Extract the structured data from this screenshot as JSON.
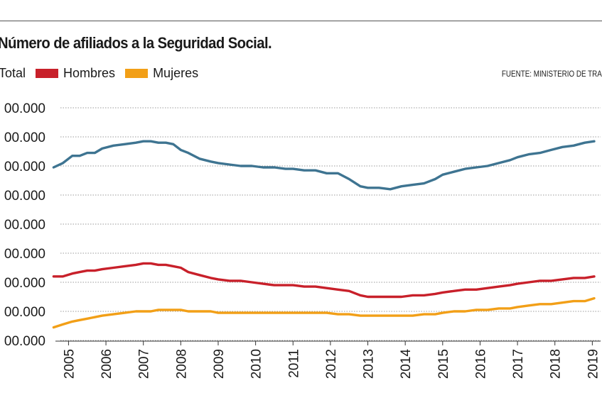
{
  "title": "Número de afiliados a la Seguridad Social.",
  "source": "FUENTE: MINISTERIO DE TRA",
  "chart_data": {
    "type": "line",
    "title": "Número de afiliados a la Seguridad Social.",
    "xlabel": "",
    "ylabel": "",
    "x_ticks": [
      "2005",
      "2006",
      "2007",
      "2008",
      "2009",
      "2010",
      "2011",
      "2012",
      "2013",
      "2014",
      "2015",
      "2016",
      "2017",
      "2018",
      "2019"
    ],
    "y_ticks": [
      "00.000",
      "00.000",
      "00.000",
      "00.000",
      "00.000",
      "00.000",
      "00.000",
      "00.000",
      "00.000"
    ],
    "xlim": [
      2005,
      2019
    ],
    "ylim": [
      0,
      8
    ],
    "grid": true,
    "legend_position": "top-left",
    "series": [
      {
        "name": "Total",
        "color": "#3e7491",
        "x": [
          2004.6,
          2004.85,
          2005.1,
          2005.3,
          2005.5,
          2005.7,
          2005.9,
          2006.2,
          2006.5,
          2006.8,
          2007.0,
          2007.2,
          2007.4,
          2007.6,
          2007.8,
          2008.0,
          2008.2,
          2008.5,
          2008.8,
          2009.0,
          2009.3,
          2009.6,
          2009.9,
          2010.2,
          2010.5,
          2010.8,
          2011.0,
          2011.3,
          2011.6,
          2011.9,
          2012.2,
          2012.5,
          2012.8,
          2013.0,
          2013.3,
          2013.6,
          2013.9,
          2014.2,
          2014.5,
          2014.8,
          2015.0,
          2015.3,
          2015.6,
          2015.9,
          2016.2,
          2016.5,
          2016.8,
          2017.0,
          2017.3,
          2017.6,
          2017.9,
          2018.2,
          2018.5,
          2018.8,
          2019.05
        ],
        "values": [
          5.95,
          6.1,
          6.35,
          6.35,
          6.45,
          6.45,
          6.6,
          6.7,
          6.75,
          6.8,
          6.85,
          6.85,
          6.8,
          6.8,
          6.75,
          6.55,
          6.45,
          6.25,
          6.15,
          6.1,
          6.05,
          6.0,
          6.0,
          5.95,
          5.95,
          5.9,
          5.9,
          5.85,
          5.85,
          5.75,
          5.75,
          5.55,
          5.3,
          5.25,
          5.25,
          5.2,
          5.3,
          5.35,
          5.4,
          5.55,
          5.7,
          5.8,
          5.9,
          5.95,
          6.0,
          6.1,
          6.2,
          6.3,
          6.4,
          6.45,
          6.55,
          6.65,
          6.7,
          6.8,
          6.85
        ]
      },
      {
        "name": "Hombres",
        "color": "#c8202a",
        "x": [
          2004.6,
          2004.85,
          2005.1,
          2005.3,
          2005.5,
          2005.7,
          2005.9,
          2006.2,
          2006.5,
          2006.8,
          2007.0,
          2007.2,
          2007.4,
          2007.6,
          2007.8,
          2008.0,
          2008.2,
          2008.5,
          2008.8,
          2009.0,
          2009.3,
          2009.6,
          2009.9,
          2010.2,
          2010.5,
          2010.8,
          2011.0,
          2011.3,
          2011.6,
          2011.9,
          2012.2,
          2012.5,
          2012.8,
          2013.0,
          2013.3,
          2013.6,
          2013.9,
          2014.2,
          2014.5,
          2014.8,
          2015.0,
          2015.3,
          2015.6,
          2015.9,
          2016.2,
          2016.5,
          2016.8,
          2017.0,
          2017.3,
          2017.6,
          2017.9,
          2018.2,
          2018.5,
          2018.8,
          2019.05
        ],
        "values": [
          2.2,
          2.2,
          2.3,
          2.35,
          2.4,
          2.4,
          2.45,
          2.5,
          2.55,
          2.6,
          2.65,
          2.65,
          2.6,
          2.6,
          2.55,
          2.5,
          2.35,
          2.25,
          2.15,
          2.1,
          2.05,
          2.05,
          2.0,
          1.95,
          1.9,
          1.9,
          1.9,
          1.85,
          1.85,
          1.8,
          1.75,
          1.7,
          1.55,
          1.5,
          1.5,
          1.5,
          1.5,
          1.55,
          1.55,
          1.6,
          1.65,
          1.7,
          1.75,
          1.75,
          1.8,
          1.85,
          1.9,
          1.95,
          2.0,
          2.05,
          2.05,
          2.1,
          2.15,
          2.15,
          2.2
        ]
      },
      {
        "name": "Mujeres",
        "color": "#f29f17",
        "x": [
          2004.6,
          2004.85,
          2005.1,
          2005.3,
          2005.5,
          2005.7,
          2005.9,
          2006.2,
          2006.5,
          2006.8,
          2007.0,
          2007.2,
          2007.4,
          2007.6,
          2007.8,
          2008.0,
          2008.2,
          2008.5,
          2008.8,
          2009.0,
          2009.3,
          2009.6,
          2009.9,
          2010.2,
          2010.5,
          2010.8,
          2011.0,
          2011.3,
          2011.6,
          2011.9,
          2012.2,
          2012.5,
          2012.8,
          2013.0,
          2013.3,
          2013.6,
          2013.9,
          2014.2,
          2014.5,
          2014.8,
          2015.0,
          2015.3,
          2015.6,
          2015.9,
          2016.2,
          2016.5,
          2016.8,
          2017.0,
          2017.3,
          2017.6,
          2017.9,
          2018.2,
          2018.5,
          2018.8,
          2019.05
        ],
        "values": [
          0.45,
          0.55,
          0.65,
          0.7,
          0.75,
          0.8,
          0.85,
          0.9,
          0.95,
          1.0,
          1.0,
          1.0,
          1.05,
          1.05,
          1.05,
          1.05,
          1.0,
          1.0,
          1.0,
          0.95,
          0.95,
          0.95,
          0.95,
          0.95,
          0.95,
          0.95,
          0.95,
          0.95,
          0.95,
          0.95,
          0.9,
          0.9,
          0.85,
          0.85,
          0.85,
          0.85,
          0.85,
          0.85,
          0.9,
          0.9,
          0.95,
          1.0,
          1.0,
          1.05,
          1.05,
          1.1,
          1.1,
          1.15,
          1.2,
          1.25,
          1.25,
          1.3,
          1.35,
          1.35,
          1.45
        ]
      }
    ]
  }
}
